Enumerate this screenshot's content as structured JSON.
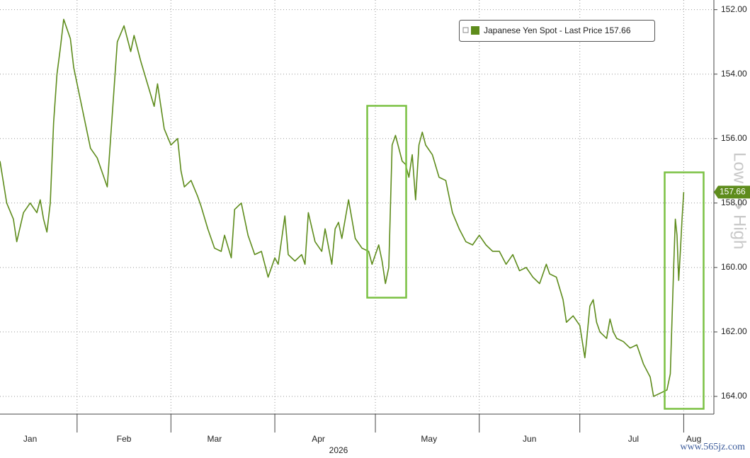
{
  "chart_data": {
    "type": "line",
    "x_label": "2026",
    "xlim": [
      9,
      222
    ],
    "xticks": [
      {
        "value": 18,
        "label": "Jan"
      },
      {
        "value": 46,
        "label": "Feb"
      },
      {
        "value": 73,
        "label": "Mar"
      },
      {
        "value": 104,
        "label": "Apr"
      },
      {
        "value": 137,
        "label": "May"
      },
      {
        "value": 167,
        "label": "Jun"
      },
      {
        "value": 198,
        "label": "Jul"
      },
      {
        "value": 216,
        "label": "Aug"
      }
    ],
    "xgrid": [
      32,
      60,
      91,
      121,
      152,
      182,
      213
    ],
    "ylim": [
      151.7,
      164.55
    ],
    "y_inverted": true,
    "yticks": [
      {
        "value": 152,
        "label": "152.00"
      },
      {
        "value": 154,
        "label": "154.00"
      },
      {
        "value": 156,
        "label": "156.00"
      },
      {
        "value": 158,
        "label": "158.00"
      },
      {
        "value": 160,
        "label": "160.00"
      },
      {
        "value": 162,
        "label": "162.00"
      },
      {
        "value": 164,
        "label": "164.00"
      }
    ],
    "grid": true,
    "axis_annotation": [
      "Low",
      "High"
    ],
    "watermark": "www.565jz.com",
    "x": [
      9,
      11,
      13,
      14,
      16,
      18,
      20,
      21,
      22,
      23,
      24,
      25,
      26,
      27,
      28,
      30,
      31,
      33,
      35,
      36,
      38,
      40,
      41,
      42,
      43,
      44,
      46,
      47,
      48,
      49,
      51,
      53,
      55,
      56,
      58,
      60,
      62,
      63,
      64,
      66,
      68,
      69,
      71,
      73,
      75,
      76,
      78,
      79,
      81,
      83,
      85,
      87,
      89,
      91,
      92,
      94,
      95,
      97,
      99,
      100,
      101,
      103,
      105,
      106,
      108,
      109,
      110,
      111,
      113,
      115,
      117,
      119,
      120,
      122,
      123,
      124,
      125,
      126,
      127,
      129,
      130,
      131,
      132,
      133,
      134,
      135,
      136,
      138,
      140,
      142,
      144,
      146,
      148,
      150,
      152,
      154,
      156,
      158,
      160,
      162,
      164,
      166,
      168,
      170,
      172,
      173,
      175,
      177,
      178,
      180,
      182,
      183.5,
      184,
      185,
      186,
      187,
      188,
      190,
      191,
      192,
      193,
      195,
      197,
      199,
      201,
      203,
      204,
      206,
      208,
      209,
      210,
      210.5,
      211,
      211.5,
      212,
      212.5,
      213
    ],
    "series": [
      {
        "name": "Japanese Yen Spot - Last Price 157.66",
        "color": "#5e8c1c",
        "values": [
          156.7,
          158,
          158.5,
          159.2,
          158.3,
          158.0,
          158.3,
          157.9,
          158.5,
          158.9,
          158.0,
          155.5,
          154.0,
          153.2,
          152.3,
          152.9,
          153.8,
          154.8,
          155.8,
          156.3,
          156.6,
          157.2,
          157.5,
          156.0,
          154.5,
          153.0,
          152.5,
          152.9,
          153.3,
          152.8,
          153.6,
          154.3,
          155.0,
          154.3,
          155.7,
          156.2,
          156.0,
          157.0,
          157.5,
          157.3,
          157.8,
          158.1,
          158.8,
          159.4,
          159.5,
          159.0,
          159.7,
          158.2,
          158.0,
          159.0,
          159.6,
          159.5,
          160.3,
          159.7,
          159.9,
          158.4,
          159.6,
          159.8,
          159.6,
          159.9,
          158.3,
          159.2,
          159.5,
          158.8,
          159.9,
          158.8,
          158.6,
          159.1,
          157.9,
          159.1,
          159.4,
          159.5,
          159.9,
          159.3,
          159.8,
          160.5,
          160.0,
          156.2,
          155.9,
          156.7,
          156.8,
          157.2,
          156.5,
          157.9,
          156.2,
          155.8,
          156.2,
          156.5,
          157.2,
          157.3,
          158.3,
          158.8,
          159.2,
          159.3,
          159.0,
          159.3,
          159.5,
          159.5,
          159.9,
          159.6,
          160.1,
          160.0,
          160.3,
          160.5,
          159.9,
          160.2,
          160.3,
          161.0,
          161.7,
          161.5,
          161.8,
          162.8,
          162.3,
          161.2,
          161.0,
          161.7,
          162.0,
          162.2,
          161.6,
          162.0,
          162.2,
          162.3,
          162.5,
          162.4,
          163.0,
          163.4,
          164.0,
          163.9,
          163.8,
          163.3,
          160.0,
          158.5,
          159.0,
          160.4,
          159.5,
          158.5,
          157.66
        ]
      }
    ]
  }
}
